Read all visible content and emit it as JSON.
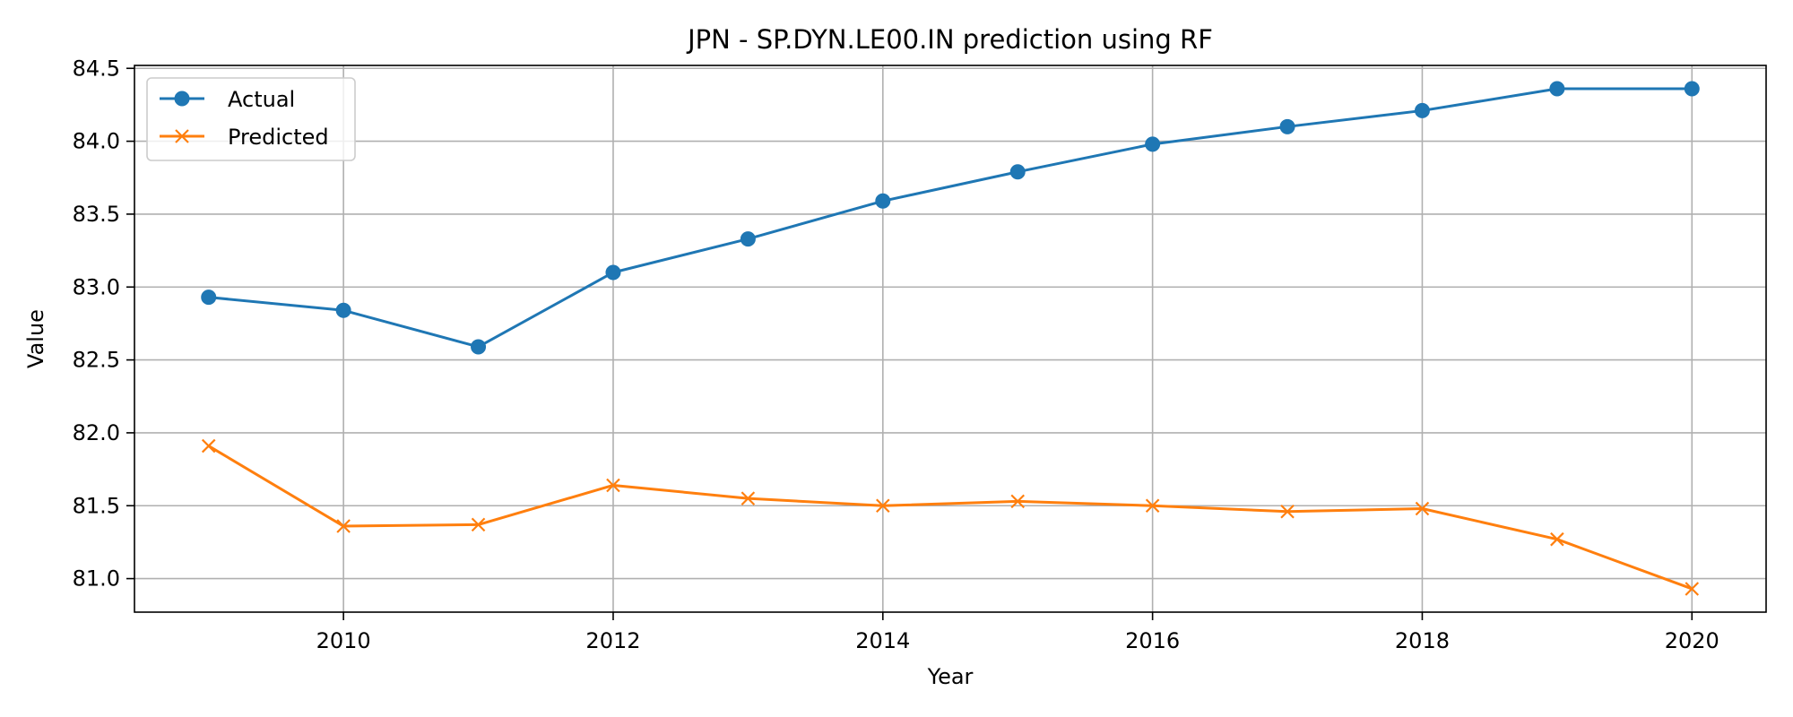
{
  "chart_data": {
    "type": "line",
    "title": "JPN - SP.DYN.LE00.IN prediction using RF",
    "xlabel": "Year",
    "ylabel": "Value",
    "x": [
      2009,
      2010,
      2011,
      2012,
      2013,
      2014,
      2015,
      2016,
      2017,
      2018,
      2019,
      2020
    ],
    "xlim": [
      2008.45,
      2020.55
    ],
    "ylim": [
      80.77,
      84.52
    ],
    "xticks": [
      2010,
      2012,
      2014,
      2016,
      2018,
      2020
    ],
    "yticks": [
      81.0,
      81.5,
      82.0,
      82.5,
      83.0,
      83.5,
      84.0,
      84.5
    ],
    "xtick_labels": [
      "2010",
      "2012",
      "2014",
      "2016",
      "2018",
      "2020"
    ],
    "ytick_labels": [
      "81.0",
      "81.5",
      "82.0",
      "82.5",
      "83.0",
      "83.5",
      "84.0",
      "84.5"
    ],
    "grid": true,
    "legend_position": "top-left",
    "series": [
      {
        "name": "Actual",
        "color": "#1f77b4",
        "marker": "circle",
        "values": [
          82.93,
          82.84,
          82.59,
          83.1,
          83.33,
          83.59,
          83.79,
          83.98,
          84.1,
          84.21,
          84.36,
          84.36
        ]
      },
      {
        "name": "Predicted",
        "color": "#ff7f0e",
        "marker": "x",
        "values": [
          81.91,
          81.36,
          81.37,
          81.64,
          81.55,
          81.5,
          81.53,
          81.5,
          81.46,
          81.48,
          81.27,
          80.93
        ]
      }
    ]
  }
}
